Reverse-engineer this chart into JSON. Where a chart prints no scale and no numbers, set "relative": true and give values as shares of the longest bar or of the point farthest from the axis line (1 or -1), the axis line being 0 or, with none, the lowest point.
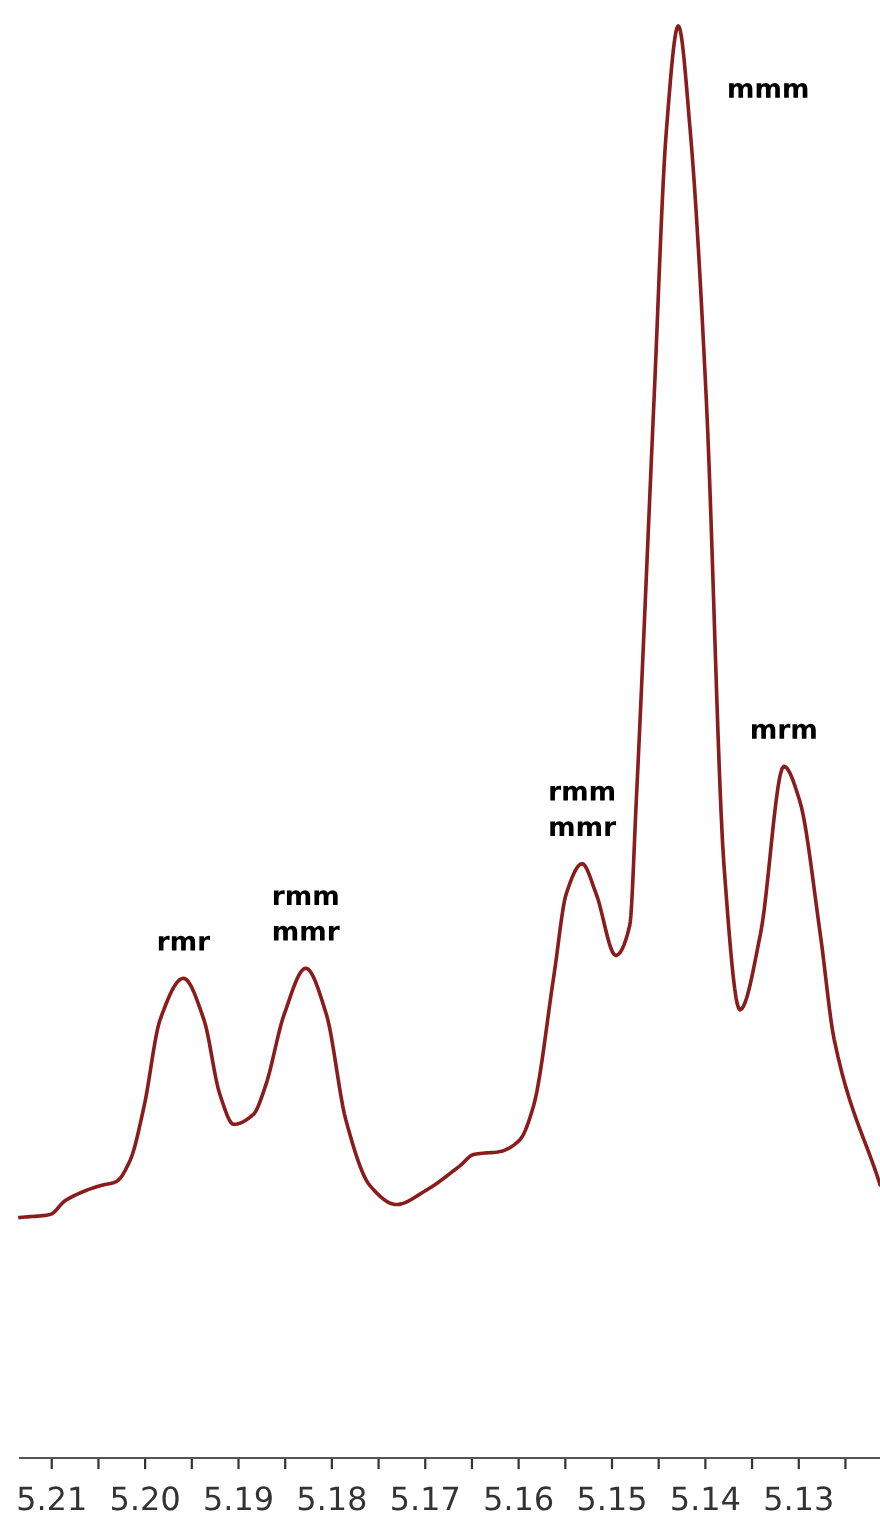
{
  "chart_data": {
    "type": "line",
    "relative": true,
    "x": [
      5.2134,
      5.2102,
      5.2085,
      5.2049,
      5.2031,
      5.2016,
      5.2001,
      5.1984,
      5.1959,
      5.1937,
      5.192,
      5.1905,
      5.1884,
      5.1871,
      5.1851,
      5.1828,
      5.1806,
      5.1785,
      5.1759,
      5.1731,
      5.1699,
      5.1663,
      5.1648,
      5.162,
      5.1599,
      5.1584,
      5.1562,
      5.1549,
      5.1532,
      5.1517,
      5.1496,
      5.1481,
      5.1474,
      5.1455,
      5.1442,
      5.1429,
      5.1416,
      5.1399,
      5.138,
      5.1363,
      5.1341,
      5.1316,
      5.1299,
      5.1277,
      5.1262,
      5.1213
    ],
    "series": [
      {
        "color": "#8b1c1c",
        "values": [
          0.168,
          0.17,
          0.18,
          0.19,
          0.193,
          0.208,
          0.246,
          0.306,
          0.335,
          0.306,
          0.254,
          0.233,
          0.24,
          0.26,
          0.31,
          0.342,
          0.31,
          0.236,
          0.19,
          0.177,
          0.187,
          0.204,
          0.212,
          0.214,
          0.222,
          0.246,
          0.338,
          0.394,
          0.415,
          0.394,
          0.351,
          0.372,
          0.459,
          0.739,
          0.925,
          1.0,
          0.925,
          0.739,
          0.413,
          0.313,
          0.366,
          0.483,
          0.459,
          0.366,
          0.292,
          0.191
        ]
      }
    ],
    "xlim": [
      5.2134,
      5.1213
    ],
    "xticks": [
      {
        "value": 5.21,
        "label": "5.21"
      },
      {
        "value": 5.205,
        "label": null
      },
      {
        "value": 5.2,
        "label": "5.20"
      },
      {
        "value": 5.195,
        "label": null
      },
      {
        "value": 5.19,
        "label": "5.19"
      },
      {
        "value": 5.185,
        "label": null
      },
      {
        "value": 5.18,
        "label": "5.18"
      },
      {
        "value": 5.175,
        "label": null
      },
      {
        "value": 5.17,
        "label": "5.17"
      },
      {
        "value": 5.165,
        "label": null
      },
      {
        "value": 5.16,
        "label": "5.16"
      },
      {
        "value": 5.155,
        "label": null
      },
      {
        "value": 5.15,
        "label": "5.15"
      },
      {
        "value": 5.145,
        "label": null
      },
      {
        "value": 5.14,
        "label": "5.14"
      },
      {
        "value": 5.135,
        "label": null
      },
      {
        "value": 5.13,
        "label": "5.13"
      },
      {
        "value": 5.125,
        "label": null
      }
    ],
    "annotations": [
      {
        "text": "rmr",
        "x": 5.1959,
        "y": 0.335
      },
      {
        "text": "rmm\nmmr",
        "x": 5.1828,
        "y": 0.342
      },
      {
        "text": "rmm\nmmr",
        "x": 5.1532,
        "y": 0.415
      },
      "mmm",
      {
        "text": "mrm",
        "x": 5.1316,
        "y": 0.483
      }
    ],
    "grid": false,
    "legend": false
  }
}
